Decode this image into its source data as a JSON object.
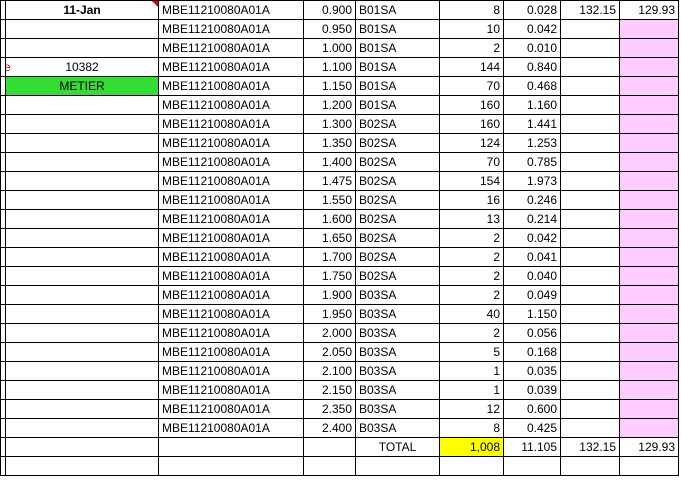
{
  "header": {
    "date": "11-Jan",
    "top_value_h": "132.15",
    "top_value_i": "129.93"
  },
  "left": {
    "edge_char": "e",
    "order_number": "10382",
    "metier_label": "METIER"
  },
  "rows": [
    {
      "part": "MBE11210080A01A",
      "size": "0.900",
      "code": "B01SA",
      "qty": "8",
      "value": "0.028"
    },
    {
      "part": "MBE11210080A01A",
      "size": "0.950",
      "code": "B01SA",
      "qty": "10",
      "value": "0.042"
    },
    {
      "part": "MBE11210080A01A",
      "size": "1.000",
      "code": "B01SA",
      "qty": "2",
      "value": "0.010"
    },
    {
      "part": "MBE11210080A01A",
      "size": "1.100",
      "code": "B01SA",
      "qty": "144",
      "value": "0.840"
    },
    {
      "part": "MBE11210080A01A",
      "size": "1.150",
      "code": "B01SA",
      "qty": "70",
      "value": "0.468"
    },
    {
      "part": "MBE11210080A01A",
      "size": "1.200",
      "code": "B01SA",
      "qty": "160",
      "value": "1.160"
    },
    {
      "part": "MBE11210080A01A",
      "size": "1.300",
      "code": "B02SA",
      "qty": "160",
      "value": "1.441"
    },
    {
      "part": "MBE11210080A01A",
      "size": "1.350",
      "code": "B02SA",
      "qty": "124",
      "value": "1.253"
    },
    {
      "part": "MBE11210080A01A",
      "size": "1.400",
      "code": "B02SA",
      "qty": "70",
      "value": "0.785"
    },
    {
      "part": "MBE11210080A01A",
      "size": "1.475",
      "code": "B02SA",
      "qty": "154",
      "value": "1.973"
    },
    {
      "part": "MBE11210080A01A",
      "size": "1.550",
      "code": "B02SA",
      "qty": "16",
      "value": "0.246"
    },
    {
      "part": "MBE11210080A01A",
      "size": "1.600",
      "code": "B02SA",
      "qty": "13",
      "value": "0.214"
    },
    {
      "part": "MBE11210080A01A",
      "size": "1.650",
      "code": "B02SA",
      "qty": "2",
      "value": "0.042"
    },
    {
      "part": "MBE11210080A01A",
      "size": "1.700",
      "code": "B02SA",
      "qty": "2",
      "value": "0.041"
    },
    {
      "part": "MBE11210080A01A",
      "size": "1.750",
      "code": "B02SA",
      "qty": "2",
      "value": "0.040"
    },
    {
      "part": "MBE11210080A01A",
      "size": "1.900",
      "code": "B03SA",
      "qty": "2",
      "value": "0.049"
    },
    {
      "part": "MBE11210080A01A",
      "size": "1.950",
      "code": "B03SA",
      "qty": "40",
      "value": "1.150"
    },
    {
      "part": "MBE11210080A01A",
      "size": "2.000",
      "code": "B03SA",
      "qty": "2",
      "value": "0.056"
    },
    {
      "part": "MBE11210080A01A",
      "size": "2.050",
      "code": "B03SA",
      "qty": "5",
      "value": "0.168"
    },
    {
      "part": "MBE11210080A01A",
      "size": "2.100",
      "code": "B03SA",
      "qty": "1",
      "value": "0.035"
    },
    {
      "part": "MBE11210080A01A",
      "size": "2.150",
      "code": "B03SA",
      "qty": "1",
      "value": "0.039"
    },
    {
      "part": "MBE11210080A01A",
      "size": "2.350",
      "code": "B03SA",
      "qty": "12",
      "value": "0.600"
    },
    {
      "part": "MBE11210080A01A",
      "size": "2.400",
      "code": "B03SA",
      "qty": "8",
      "value": "0.425"
    }
  ],
  "total": {
    "label": "TOTAL",
    "qty": "1,008",
    "value": "11.105",
    "h": "132.15",
    "i": "129.93"
  },
  "colors": {
    "pink_fill": "#ffccff",
    "metier_fill": "#33dd33",
    "total_qty_fill": "#ffff00",
    "red_text": "#e00000"
  }
}
